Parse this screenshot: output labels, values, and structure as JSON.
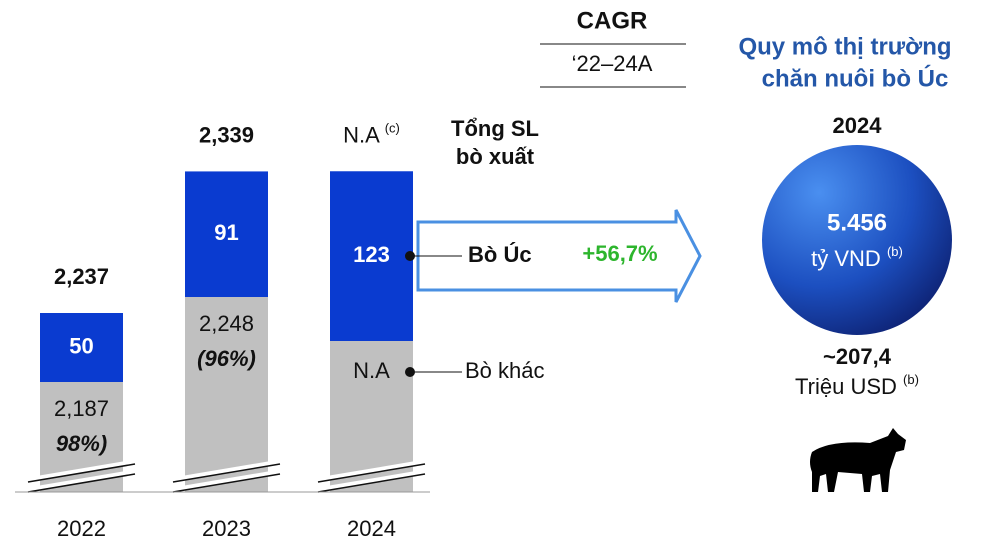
{
  "header": {
    "cagr_title": "CAGR",
    "cagr_period": "‘22–24A",
    "market_title": [
      "Quy mô thị trường",
      "chăn nuôi bò Úc"
    ]
  },
  "total_label": [
    "Tổng SL",
    "bò xuất"
  ],
  "bars": [
    {
      "year": "2022",
      "total": "2,237",
      "australian": 50,
      "other": "2,187",
      "other_share": "98%)"
    },
    {
      "year": "2023",
      "total": "2,339",
      "australian": 91,
      "other": "2,248",
      "other_share": "(96%)"
    },
    {
      "year": "2024",
      "total": "N.A",
      "total_note": "(c)",
      "australian": 123,
      "other": "N.A"
    }
  ],
  "legend": {
    "australian": "Bò Úc",
    "other": "Bò khác"
  },
  "cagr": "+56,7%",
  "market": {
    "year": "2024",
    "value": "5.456",
    "unit": "tỷ VND",
    "unit_note": "(b)",
    "usd_value": "~207,4",
    "usd_unit": "Triệu USD",
    "usd_note": "(b)"
  }
}
